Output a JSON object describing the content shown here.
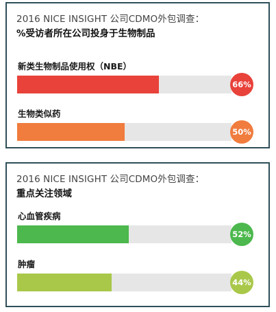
{
  "chart_data": [
    {
      "type": "bar",
      "orientation": "horizontal",
      "title": "2016 NICE INSIGHT 公司CDMO外包调查：",
      "subtitle": "%受访者所在公司投身于生物制品",
      "categories": [
        "新类生物制品使用权（NBE）",
        "生物类似药"
      ],
      "values": [
        66,
        50
      ],
      "value_labels": [
        "66%",
        "50%"
      ],
      "xlim": [
        0,
        100
      ],
      "colors": [
        "#e8423a",
        "#f07c3e"
      ],
      "track_color": "#e6e6e6",
      "grid": false
    },
    {
      "type": "bar",
      "orientation": "horizontal",
      "title": "2016 NICE INSIGHT 公司CDMO外包调查：",
      "subtitle": "重点关注领域",
      "categories": [
        "心血管疾病",
        "肿瘤"
      ],
      "values": [
        52,
        44
      ],
      "value_labels": [
        "52%",
        "44%"
      ],
      "xlim": [
        0,
        100
      ],
      "colors": [
        "#4cb84d",
        "#a9c84a"
      ],
      "track_color": "#e6e6e6",
      "grid": false
    }
  ]
}
